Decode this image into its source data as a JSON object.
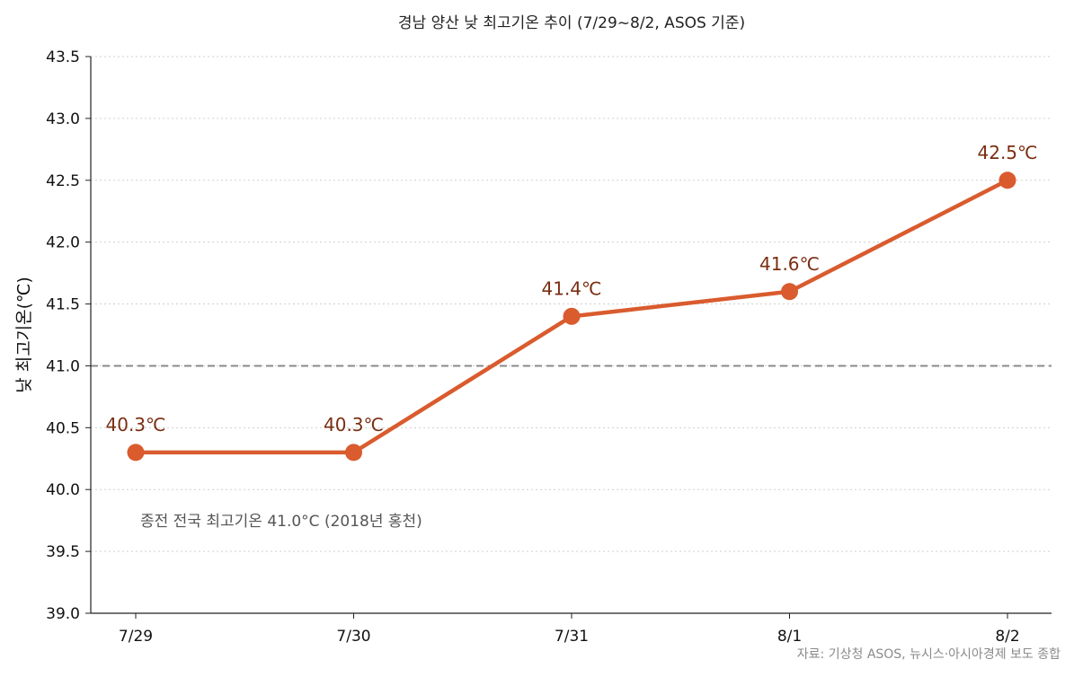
{
  "chart_data": {
    "type": "line",
    "title": "경남 양산 낮 최고기온 추이 (7/29~8/2, ASOS 기준)",
    "ylabel": "낮 최고기온(℃)",
    "xlabel": "",
    "categories": [
      "7/29",
      "7/30",
      "7/31",
      "8/1",
      "8/2"
    ],
    "values": [
      40.3,
      40.3,
      41.4,
      41.6,
      42.5
    ],
    "data_labels": [
      "40.3℃",
      "40.3℃",
      "41.4℃",
      "41.6℃",
      "42.5℃"
    ],
    "ylim": [
      39.0,
      43.5
    ],
    "yticks": [
      39.0,
      39.5,
      40.0,
      40.5,
      41.0,
      41.5,
      42.0,
      42.5,
      43.0,
      43.5
    ],
    "ytick_labels": [
      "39.0",
      "39.5",
      "40.0",
      "40.5",
      "41.0",
      "41.5",
      "42.0",
      "42.5",
      "43.0",
      "43.5"
    ],
    "reference_line": {
      "value": 41.0,
      "style": "dashed",
      "color": "#8a8a8a"
    },
    "annotation": "종전 전국 최고기온 41.0°C (2018년 홍천)",
    "grid": true,
    "line_color": "#d95b2e",
    "label_color": "#7a2e12"
  },
  "source": "자료: 기상청 ASOS, 뉴시스·아시아경제 보도 종합"
}
